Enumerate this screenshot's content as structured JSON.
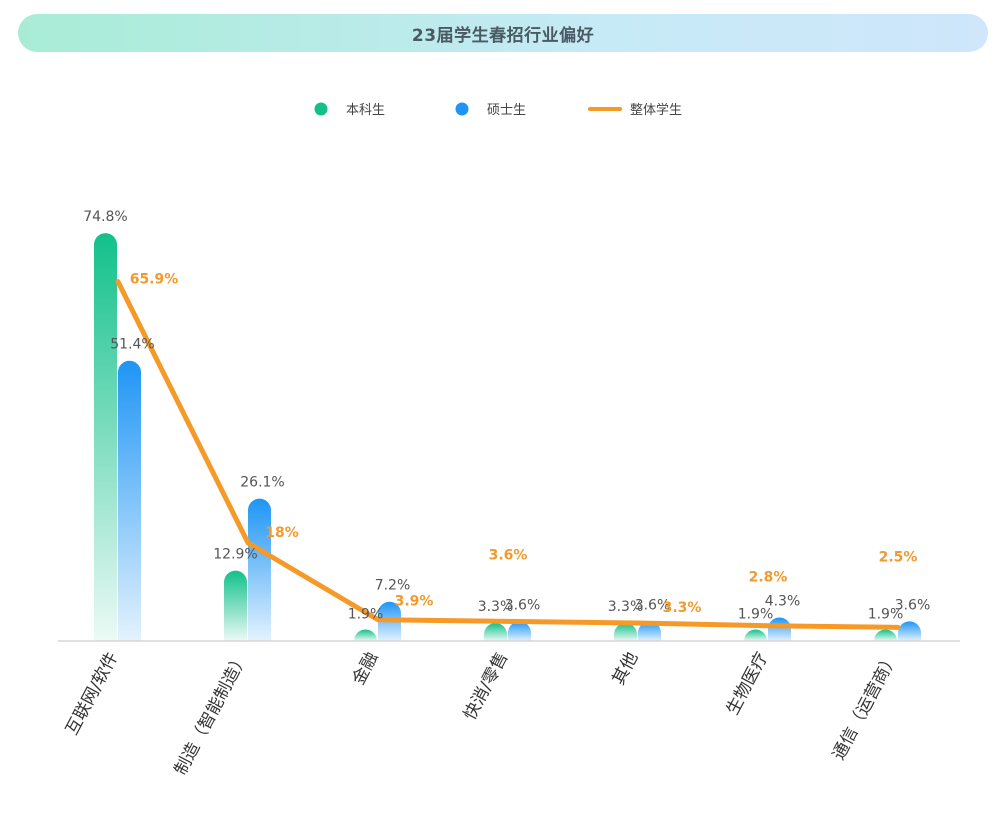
{
  "chart_data": {
    "type": "bar",
    "title": "23届学生春招行业偏好",
    "categories": [
      "互联网/软件",
      "制造（智能制造）",
      "金融",
      "快消/零售",
      "其他",
      "生物医疗",
      "通信（运营商）"
    ],
    "series": [
      {
        "name": "本科生",
        "type": "bar",
        "values": [
          74.8,
          12.9,
          1.9,
          3.3,
          3.3,
          1.9,
          1.9
        ],
        "labels": [
          "74.8%",
          "12.9%",
          "1.9%",
          "3.3%",
          "3.3%",
          "1.9%",
          "1.9%"
        ]
      },
      {
        "name": "硕士生",
        "type": "bar",
        "values": [
          51.4,
          26.1,
          7.2,
          3.6,
          3.6,
          4.3,
          3.6
        ],
        "labels": [
          "51.4%",
          "26.1%",
          "7.2%",
          "3.6%",
          "3.6%",
          "4.3%",
          "3.6%"
        ]
      },
      {
        "name": "整体学生",
        "type": "line",
        "values": [
          65.9,
          18,
          3.9,
          3.6,
          3.3,
          2.8,
          2.5
        ],
        "labels": [
          "65.9%",
          "18%",
          "3.9%",
          "3.6%",
          "3.3%",
          "2.8%",
          "2.5%"
        ]
      }
    ],
    "ylim": [
      0,
      75
    ],
    "legend_position": "top-center",
    "grid": false,
    "colors": {
      "undergrad": "#12c08a",
      "master": "#1e95f5",
      "overall": "#f59a28"
    }
  }
}
